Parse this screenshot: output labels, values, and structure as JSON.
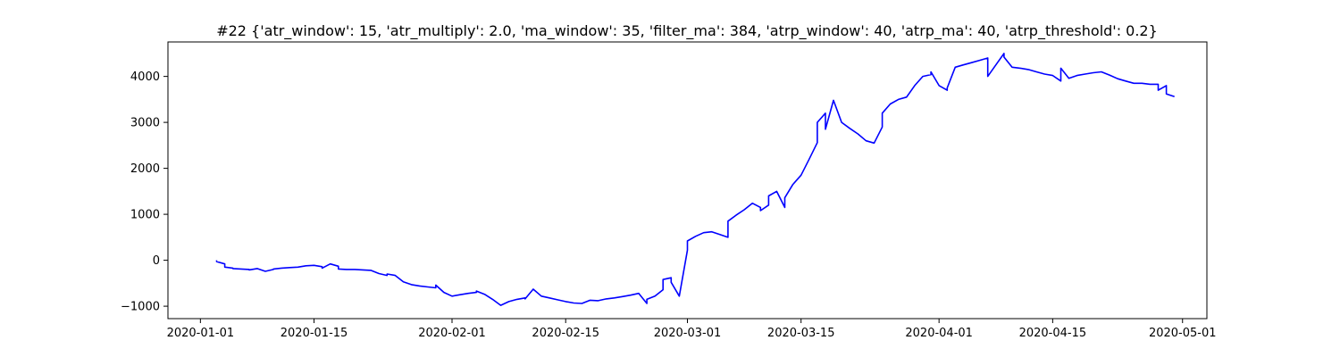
{
  "chart_data": {
    "type": "line",
    "title": "#22 {'atr_window': 15, 'atr_multiply': 2.0, 'ma_window': 35, 'filter_ma': 384, 'atrp_window': 40, 'atrp_ma': 40, 'atrp_threshold': 0.2}",
    "xlabel": "",
    "ylabel": "",
    "x_axis": "date",
    "xlim": [
      "2019-12-28",
      "2020-05-04"
    ],
    "ylim": [
      -1270,
      4750
    ],
    "grid": false,
    "legend": "none",
    "x_ticks": [
      "2020-01-01",
      "2020-01-15",
      "2020-02-01",
      "2020-02-15",
      "2020-03-01",
      "2020-03-15",
      "2020-04-01",
      "2020-04-15",
      "2020-05-01"
    ],
    "y_ticks": [
      -1000,
      0,
      1000,
      2000,
      3000,
      4000
    ],
    "series": [
      {
        "color": "#0000ff",
        "x": [
          "2020-01-03",
          "2020-01-03",
          "2020-01-04",
          "2020-01-04",
          "2020-01-05",
          "2020-01-05",
          "2020-01-06",
          "2020-01-07",
          "2020-01-07",
          "2020-01-08",
          "2020-01-09",
          "2020-01-10",
          "2020-01-10",
          "2020-01-11",
          "2020-01-12",
          "2020-01-13",
          "2020-01-14",
          "2020-01-15",
          "2020-01-16",
          "2020-01-16",
          "2020-01-17",
          "2020-01-18",
          "2020-01-18",
          "2020-01-19",
          "2020-01-20",
          "2020-01-21",
          "2020-01-22",
          "2020-01-23",
          "2020-01-24",
          "2020-01-24",
          "2020-01-25",
          "2020-01-26",
          "2020-01-27",
          "2020-01-28",
          "2020-01-29",
          "2020-01-30",
          "2020-01-30",
          "2020-01-31",
          "2020-02-01",
          "2020-02-02",
          "2020-02-03",
          "2020-02-04",
          "2020-02-04",
          "2020-02-05",
          "2020-02-06",
          "2020-02-07",
          "2020-02-08",
          "2020-02-09",
          "2020-02-10",
          "2020-02-10",
          "2020-02-11",
          "2020-02-12",
          "2020-02-13",
          "2020-02-14",
          "2020-02-15",
          "2020-02-16",
          "2020-02-17",
          "2020-02-18",
          "2020-02-19",
          "2020-02-20",
          "2020-02-21",
          "2020-02-22",
          "2020-02-23",
          "2020-02-24",
          "2020-02-25",
          "2020-02-25",
          "2020-02-26",
          "2020-02-27",
          "2020-02-27",
          "2020-02-28",
          "2020-02-28",
          "2020-02-29",
          "2020-03-01",
          "2020-03-01",
          "2020-03-02",
          "2020-03-03",
          "2020-03-04",
          "2020-03-05",
          "2020-03-06",
          "2020-03-06",
          "2020-03-07",
          "2020-03-08",
          "2020-03-09",
          "2020-03-10",
          "2020-03-10",
          "2020-03-11",
          "2020-03-11",
          "2020-03-12",
          "2020-03-13",
          "2020-03-13",
          "2020-03-14",
          "2020-03-15",
          "2020-03-16",
          "2020-03-17",
          "2020-03-17",
          "2020-03-18",
          "2020-03-18",
          "2020-03-19",
          "2020-03-20",
          "2020-03-21",
          "2020-03-22",
          "2020-03-23",
          "2020-03-24",
          "2020-03-25",
          "2020-03-25",
          "2020-03-26",
          "2020-03-27",
          "2020-03-28",
          "2020-03-29",
          "2020-03-30",
          "2020-03-31",
          "2020-03-31",
          "2020-04-01",
          "2020-04-02",
          "2020-04-02",
          "2020-04-03",
          "2020-04-04",
          "2020-04-05",
          "2020-04-06",
          "2020-04-07",
          "2020-04-07",
          "2020-04-08",
          "2020-04-09",
          "2020-04-09",
          "2020-04-10",
          "2020-04-11",
          "2020-04-12",
          "2020-04-13",
          "2020-04-14",
          "2020-04-15",
          "2020-04-16",
          "2020-04-16",
          "2020-04-17",
          "2020-04-18",
          "2020-04-19",
          "2020-04-20",
          "2020-04-21",
          "2020-04-22",
          "2020-04-23",
          "2020-04-24",
          "2020-04-25",
          "2020-04-26",
          "2020-04-27",
          "2020-04-28",
          "2020-04-28",
          "2020-04-29",
          "2020-04-29",
          "2020-04-30"
        ],
        "y": [
          0,
          -30,
          -80,
          -150,
          -170,
          -180,
          -190,
          -200,
          -210,
          -180,
          -240,
          -200,
          -190,
          -170,
          -160,
          -150,
          -120,
          -110,
          -140,
          -170,
          -80,
          -130,
          -190,
          -200,
          -200,
          -210,
          -220,
          -290,
          -330,
          -300,
          -330,
          -470,
          -530,
          -560,
          -580,
          -600,
          -540,
          -700,
          -780,
          -750,
          -720,
          -700,
          -670,
          -740,
          -850,
          -980,
          -900,
          -850,
          -820,
          -840,
          -630,
          -780,
          -820,
          -860,
          -900,
          -930,
          -940,
          -870,
          -880,
          -840,
          -820,
          -790,
          -760,
          -720,
          -940,
          -850,
          -780,
          -640,
          -420,
          -380,
          -480,
          -780,
          220,
          420,
          520,
          600,
          620,
          560,
          500,
          850,
          980,
          1100,
          1240,
          1150,
          1080,
          1200,
          1400,
          1500,
          1150,
          1360,
          1650,
          1850,
          2200,
          2560,
          3000,
          3200,
          2850,
          3480,
          3000,
          2870,
          2750,
          2600,
          2550,
          2900,
          3200,
          3400,
          3500,
          3550,
          3800,
          4000,
          4040,
          4100,
          3800,
          3700,
          3750,
          4200,
          4250,
          4300,
          4350,
          4400,
          4000,
          4250,
          4500,
          4420,
          4200,
          4180,
          4150,
          4100,
          4050,
          4020,
          3900,
          4180,
          3960,
          4020,
          4050,
          4080,
          4100,
          4030,
          3950,
          3900,
          3850,
          3850,
          3830,
          3830,
          3700,
          3800,
          3620,
          3560
        ]
      }
    ]
  }
}
